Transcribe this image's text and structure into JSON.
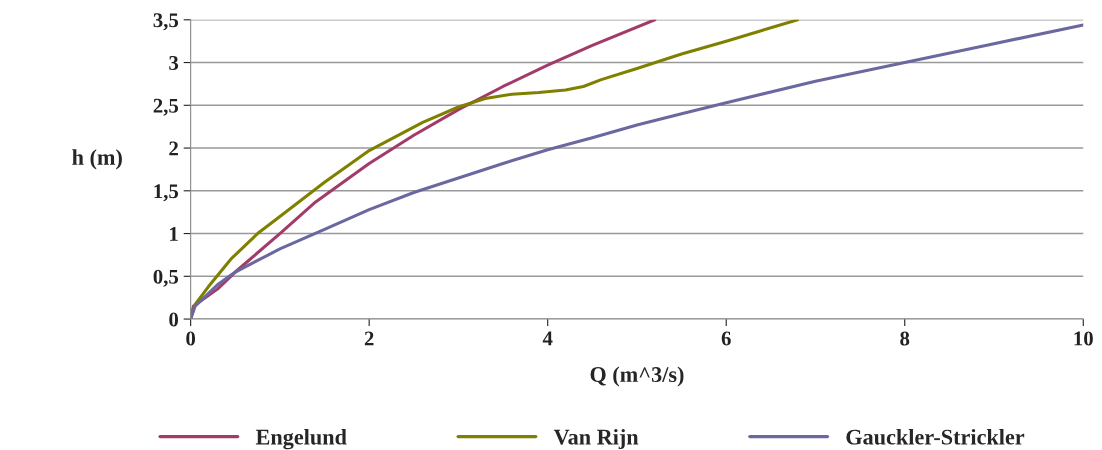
{
  "chart_data": {
    "type": "line",
    "xlabel": "Q (m^3/s)",
    "ylabel": "h (m)",
    "xlim": [
      0,
      10
    ],
    "xticks": [
      0,
      2,
      4,
      6,
      8,
      10
    ],
    "ylim": [
      0,
      3.5
    ],
    "yticks": [
      0,
      {
        "value": 0.5,
        "label": "0,5"
      },
      1,
      {
        "value": 1.5,
        "label": "1,5"
      },
      2,
      {
        "value": 2.5,
        "label": "2,5"
      },
      3,
      {
        "value": 3.5,
        "label": "3,5"
      }
    ],
    "grid": "y",
    "legend": "bottom",
    "marker": "none",
    "line_style": "solid",
    "series": [
      {
        "name": "Engelund",
        "color": "#a33b6a",
        "x": [
          0,
          0.03,
          0.3,
          0.5,
          1,
          1.4,
          2,
          2.5,
          3,
          3.5,
          4,
          4.5,
          5.2
        ],
        "values": [
          0,
          0.15,
          0.35,
          0.55,
          1.0,
          1.37,
          1.82,
          2.15,
          2.45,
          2.72,
          2.97,
          3.2,
          3.5
        ]
      },
      {
        "name": "Van Rijn",
        "color": "#808000",
        "x": [
          0,
          0.05,
          0.2,
          0.45,
          0.75,
          1,
          1.5,
          2,
          2.6,
          3,
          3.3,
          3.6,
          3.9,
          4.2,
          4.4,
          4.6,
          5,
          5.5,
          6,
          6.8
        ],
        "values": [
          0,
          0.17,
          0.38,
          0.7,
          1.0,
          1.2,
          1.6,
          1.97,
          2.3,
          2.48,
          2.58,
          2.63,
          2.65,
          2.68,
          2.72,
          2.8,
          2.93,
          3.1,
          3.25,
          3.5
        ]
      },
      {
        "name": "Gauckler-Strickler",
        "color": "#6b68a0",
        "x": [
          0,
          0.05,
          0.3,
          0.5,
          1,
          1.5,
          2,
          2.5,
          3,
          3.5,
          4,
          4.5,
          5,
          5.5,
          6,
          7,
          8,
          9,
          10
        ],
        "values": [
          0,
          0.15,
          0.4,
          0.55,
          0.82,
          1.05,
          1.28,
          1.48,
          1.65,
          1.82,
          1.98,
          2.12,
          2.27,
          2.4,
          2.53,
          2.78,
          3.0,
          3.22,
          3.44
        ]
      }
    ]
  }
}
